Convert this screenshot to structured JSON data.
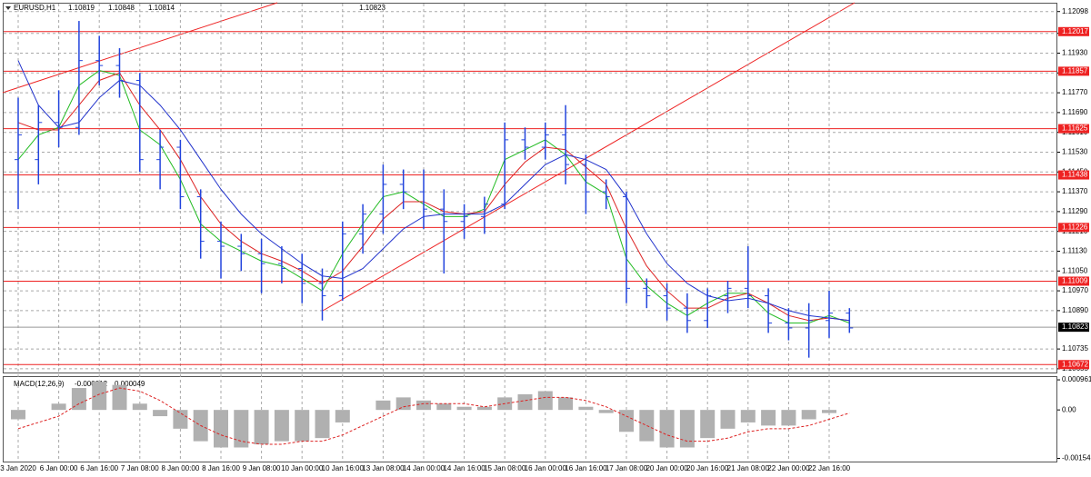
{
  "chart_data": [
    {
      "type": "ohlc",
      "title": "EURUSD,H1",
      "header_values": [
        1.10819,
        1.10848,
        1.10814,
        1.10823
      ],
      "categories": [
        "3 Jan 2020",
        null,
        "6 Jan 00:00",
        null,
        "6 Jan 16:00",
        null,
        "7 Jan 08:00",
        null,
        "8 Jan 00:00",
        null,
        "8 Jan 16:00",
        null,
        "9 Jan 08:00",
        null,
        "10 Jan 00:00",
        null,
        "10 Jan 16:00",
        null,
        "13 Jan 08:00",
        null,
        "14 Jan 00:00",
        null,
        "14 Jan 16:00",
        null,
        "15 Jan 08:00",
        null,
        "16 Jan 00:00",
        null,
        "16 Jan 16:00",
        null,
        "17 Jan 08:00",
        null,
        "20 Jan 00:00",
        null,
        "20 Jan 16:00",
        null,
        "21 Jan 08:00",
        null,
        "22 Jan 00:00",
        null,
        "22 Jan 16:00",
        null
      ],
      "open": [
        1.115,
        1.115,
        1.1165,
        1.1163,
        1.119,
        1.1188,
        1.1182,
        1.115,
        1.1155,
        1.1135,
        1.1117,
        1.1115,
        1.1112,
        1.1108,
        1.1106,
        1.11,
        1.1095,
        1.112,
        1.1128,
        1.114,
        1.1137,
        1.113,
        1.1125,
        1.1127,
        1.1132,
        1.1158,
        1.1155,
        1.116,
        1.1148,
        1.1137,
        1.1135,
        1.1098,
        1.1095,
        1.109,
        1.1085,
        1.1095,
        1.1098,
        1.1095,
        1.1084,
        1.1082,
        1.1085,
        1.1088
      ],
      "high": [
        1.1175,
        1.1172,
        1.1178,
        1.1206,
        1.12,
        1.1195,
        1.1185,
        1.1162,
        1.1158,
        1.1138,
        1.1125,
        1.112,
        1.1118,
        1.1115,
        1.1112,
        1.1106,
        1.1125,
        1.1132,
        1.1148,
        1.1146,
        1.1146,
        1.1138,
        1.1132,
        1.1135,
        1.1165,
        1.1163,
        1.1165,
        1.1172,
        1.1152,
        1.1142,
        1.1137,
        1.1102,
        1.11,
        1.1096,
        1.1098,
        1.1101,
        1.1115,
        1.1098,
        1.109,
        1.1092,
        1.1097,
        1.109
      ],
      "low": [
        1.113,
        1.114,
        1.1155,
        1.116,
        1.118,
        1.1175,
        1.1145,
        1.1138,
        1.113,
        1.111,
        1.1102,
        1.1105,
        1.1096,
        1.11,
        1.1092,
        1.1085,
        1.1093,
        1.1112,
        1.112,
        1.113,
        1.1122,
        1.1104,
        1.1118,
        1.112,
        1.113,
        1.115,
        1.115,
        1.114,
        1.1128,
        1.113,
        1.1092,
        1.109,
        1.1085,
        1.108,
        1.1082,
        1.1088,
        1.109,
        1.108,
        1.1077,
        1.107,
        1.1078,
        1.108
      ],
      "close": [
        1.116,
        1.1165,
        1.1163,
        1.119,
        1.1188,
        1.1182,
        1.115,
        1.1155,
        1.1135,
        1.1117,
        1.1115,
        1.1112,
        1.1108,
        1.1106,
        1.11,
        1.1095,
        1.112,
        1.1128,
        1.114,
        1.1137,
        1.113,
        1.1125,
        1.1127,
        1.1132,
        1.1158,
        1.1155,
        1.116,
        1.1148,
        1.1137,
        1.1135,
        1.1098,
        1.1095,
        1.109,
        1.1085,
        1.1095,
        1.1098,
        1.1095,
        1.1084,
        1.1082,
        1.1085,
        1.1088,
        1.1082
      ],
      "color": "#2244dd",
      "overlays": [
        {
          "color": "#22bb22",
          "values": [
            1.115,
            1.116,
            1.1163,
            1.118,
            1.1186,
            1.1184,
            1.1162,
            1.1156,
            1.1142,
            1.1124,
            1.1117,
            1.1113,
            1.1109,
            1.1107,
            1.1102,
            1.1097,
            1.1112,
            1.1124,
            1.1135,
            1.1137,
            1.1132,
            1.1127,
            1.1127,
            1.113,
            1.115,
            1.1154,
            1.1158,
            1.1152,
            1.1141,
            1.1136,
            1.111,
            1.1099,
            1.1092,
            1.1087,
            1.1092,
            1.1096,
            1.1096,
            1.1088,
            1.1084,
            1.1084,
            1.1087,
            1.1084
          ]
        },
        {
          "color": "#dd2222",
          "values": [
            1.1165,
            1.1162,
            1.1162,
            1.1172,
            1.1182,
            1.1185,
            1.1172,
            1.1162,
            1.115,
            1.1135,
            1.1124,
            1.1117,
            1.1112,
            1.1109,
            1.1105,
            1.11,
            1.1105,
            1.1115,
            1.1126,
            1.1133,
            1.1133,
            1.1129,
            1.1128,
            1.1129,
            1.114,
            1.1149,
            1.1155,
            1.1154,
            1.1147,
            1.114,
            1.1122,
            1.1107,
            1.1097,
            1.109,
            1.109,
            1.1094,
            1.1096,
            1.1092,
            1.1087,
            1.1085,
            1.1086,
            1.1085
          ]
        },
        {
          "color": "#2233cc",
          "values": [
            1.119,
            1.1172,
            1.1163,
            1.1165,
            1.1175,
            1.1182,
            1.118,
            1.1172,
            1.1162,
            1.115,
            1.1138,
            1.1128,
            1.112,
            1.1114,
            1.1108,
            1.1103,
            1.1102,
            1.1106,
            1.1114,
            1.1122,
            1.1127,
            1.1128,
            1.1128,
            1.1128,
            1.1132,
            1.114,
            1.1148,
            1.1152,
            1.115,
            1.1146,
            1.1135,
            1.112,
            1.1108,
            1.11,
            1.1095,
            1.1093,
            1.1094,
            1.1092,
            1.1089,
            1.1087,
            1.1086,
            1.1085
          ]
        }
      ],
      "levels": [
        1.12017,
        1.11857,
        1.11625,
        1.11438,
        1.11226,
        1.11009,
        1.10672
      ],
      "level_color": "#ee2222",
      "last": 1.10823,
      "ylim": [
        1.1064,
        1.1213
      ],
      "yticks": [
        1.12098,
        {
          "value": 1.1201,
          "label": "1.12010"
        },
        {
          "value": 1.1193,
          "label": "1.11930"
        },
        {
          "value": 1.1185,
          "label": "1.11850"
        },
        {
          "value": 1.1177,
          "label": "1.11770"
        },
        {
          "value": 1.1169,
          "label": "1.11690"
        },
        {
          "value": 1.1161,
          "label": "1.11610"
        },
        {
          "value": 1.1153,
          "label": "1.11530"
        },
        {
          "value": 1.1145,
          "label": "1.11450"
        },
        {
          "value": 1.1137,
          "label": "1.11370"
        },
        {
          "value": 1.1129,
          "label": "1.11290"
        },
        {
          "value": 1.1121,
          "label": "1.11210"
        },
        {
          "value": 1.1113,
          "label": "1.11130"
        },
        {
          "value": 1.1105,
          "label": "1.11050"
        },
        {
          "value": 1.1097,
          "label": "1.10970"
        },
        {
          "value": 1.1089,
          "label": "1.10890"
        },
        1.10735,
        1.10655
      ],
      "grid": true
    },
    {
      "type": "macd",
      "title": "MACD(12,26,9)",
      "header_values": [
        -1.2e-05,
        4.9e-05
      ],
      "histogram": [
        -0.0003,
        0.0,
        0.0002,
        0.0007,
        0.0009,
        0.0008,
        0.0002,
        -0.0002,
        -0.0006,
        -0.001,
        -0.0012,
        -0.0012,
        -0.0011,
        -0.001,
        -0.001,
        -0.0009,
        -0.0004,
        0.0,
        0.0003,
        0.0004,
        0.0003,
        0.0002,
        0.0001,
        0.0001,
        0.0004,
        0.0005,
        0.0006,
        0.0004,
        0.0001,
        -0.0001,
        -0.0007,
        -0.001,
        -0.0012,
        -0.0012,
        -0.0009,
        -0.0006,
        -0.0004,
        -0.0005,
        -0.0005,
        -0.0003,
        -0.0001,
        0.0
      ],
      "histogram_color": "#b0b0b0",
      "signal": [
        -0.0006,
        -0.0004,
        -0.0002,
        0.0002,
        0.0005,
        0.0007,
        0.0006,
        0.0003,
        -0.0001,
        -0.0005,
        -0.0008,
        -0.001,
        -0.0011,
        -0.0011,
        -0.001,
        -0.001,
        -0.0008,
        -0.0005,
        -0.0002,
        0.0001,
        0.0002,
        0.0002,
        0.0002,
        0.0001,
        0.0002,
        0.0003,
        0.0004,
        0.0004,
        0.0003,
        0.0001,
        -0.0002,
        -0.0005,
        -0.0008,
        -0.001,
        -0.001,
        -0.0009,
        -0.0007,
        -0.0006,
        -0.0006,
        -0.0005,
        -0.0003,
        -0.0001
      ],
      "signal_color": "#dd2222",
      "ylim": [
        -0.00165,
        0.00105
      ],
      "yticks": [
        0.000961,
        {
          "value": 0,
          "label": "0.00"
        },
        -0.001549
      ]
    }
  ]
}
